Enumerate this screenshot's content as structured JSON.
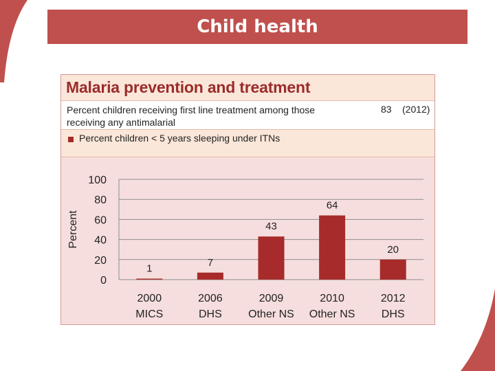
{
  "slide": {
    "title": "Child health"
  },
  "panel": {
    "title": "Malaria prevention and treatment",
    "treatment_label": "Percent children receiving first line treatment among those receiving any antimalarial",
    "treatment_value": "83",
    "treatment_year": "(2012)",
    "legend_label": "Percent children < 5 years sleeping under ITNs"
  },
  "colors": {
    "accent": "#c0504d",
    "bar": "#a72b2b",
    "panel_bg": "#f6dede",
    "header_bg": "#fbe7d9"
  },
  "chart_data": {
    "type": "bar",
    "title": "",
    "ylabel": "Percent",
    "xlabel": "",
    "ylim": [
      0,
      100
    ],
    "yticks": [
      "0",
      "20",
      "40",
      "60",
      "80",
      "100"
    ],
    "grid": true,
    "categories": [
      [
        "2000",
        "MICS"
      ],
      [
        "2006",
        "DHS"
      ],
      [
        "2009",
        "Other NS"
      ],
      [
        "2010",
        "Other NS"
      ],
      [
        "2012",
        "DHS"
      ]
    ],
    "series": [
      {
        "name": "Percent children < 5 years sleeping under ITNs",
        "values": [
          1,
          7,
          43,
          64,
          20
        ]
      }
    ]
  }
}
